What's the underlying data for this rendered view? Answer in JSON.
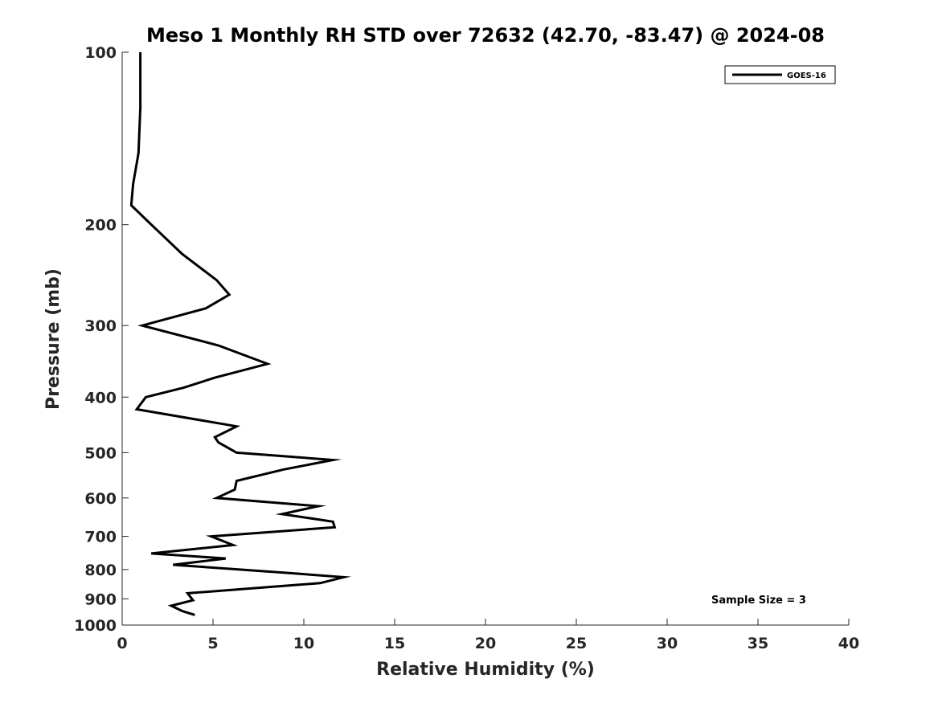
{
  "chart_data": {
    "type": "line",
    "title": "Meso 1 Monthly RH STD over 72632 (42.70, -83.47) @ 2024-08",
    "xlabel": "Relative Humidity (%)",
    "ylabel": "Pressure (mb)",
    "xlim": [
      0,
      40
    ],
    "ylim": [
      1000,
      100
    ],
    "yscale": "log",
    "y_reversed": true,
    "xticks": [
      0,
      5,
      10,
      15,
      20,
      25,
      30,
      35,
      40
    ],
    "yticks": [
      100,
      200,
      300,
      400,
      500,
      600,
      700,
      800,
      900,
      1000
    ],
    "grid": false,
    "legend_position": "top-right",
    "annotation": "Sample Size = 3",
    "line_color": "#000000",
    "series": [
      {
        "name": "GOES-16",
        "points": [
          [
            1.0,
            100
          ],
          [
            1.0,
            125
          ],
          [
            0.9,
            150
          ],
          [
            0.6,
            170
          ],
          [
            0.5,
            185
          ],
          [
            1.6,
            200
          ],
          [
            3.3,
            225
          ],
          [
            5.2,
            250
          ],
          [
            5.9,
            265
          ],
          [
            4.6,
            280
          ],
          [
            1.1,
            300
          ],
          [
            5.3,
            325
          ],
          [
            8.0,
            350
          ],
          [
            5.1,
            370
          ],
          [
            3.4,
            385
          ],
          [
            1.3,
            400
          ],
          [
            0.8,
            420
          ],
          [
            6.3,
            450
          ],
          [
            5.1,
            470
          ],
          [
            5.3,
            480
          ],
          [
            6.3,
            500
          ],
          [
            11.6,
            515
          ],
          [
            8.9,
            535
          ],
          [
            6.3,
            560
          ],
          [
            6.2,
            580
          ],
          [
            5.2,
            600
          ],
          [
            10.8,
            620
          ],
          [
            8.8,
            640
          ],
          [
            11.6,
            660
          ],
          [
            11.7,
            675
          ],
          [
            4.9,
            700
          ],
          [
            6.1,
            725
          ],
          [
            1.6,
            750
          ],
          [
            5.7,
            765
          ],
          [
            2.8,
            785
          ],
          [
            8.9,
            810
          ],
          [
            12.2,
            825
          ],
          [
            10.9,
            845
          ],
          [
            3.6,
            880
          ],
          [
            3.9,
            905
          ],
          [
            2.7,
            925
          ],
          [
            3.3,
            945
          ],
          [
            4.0,
            960
          ]
        ]
      }
    ]
  }
}
